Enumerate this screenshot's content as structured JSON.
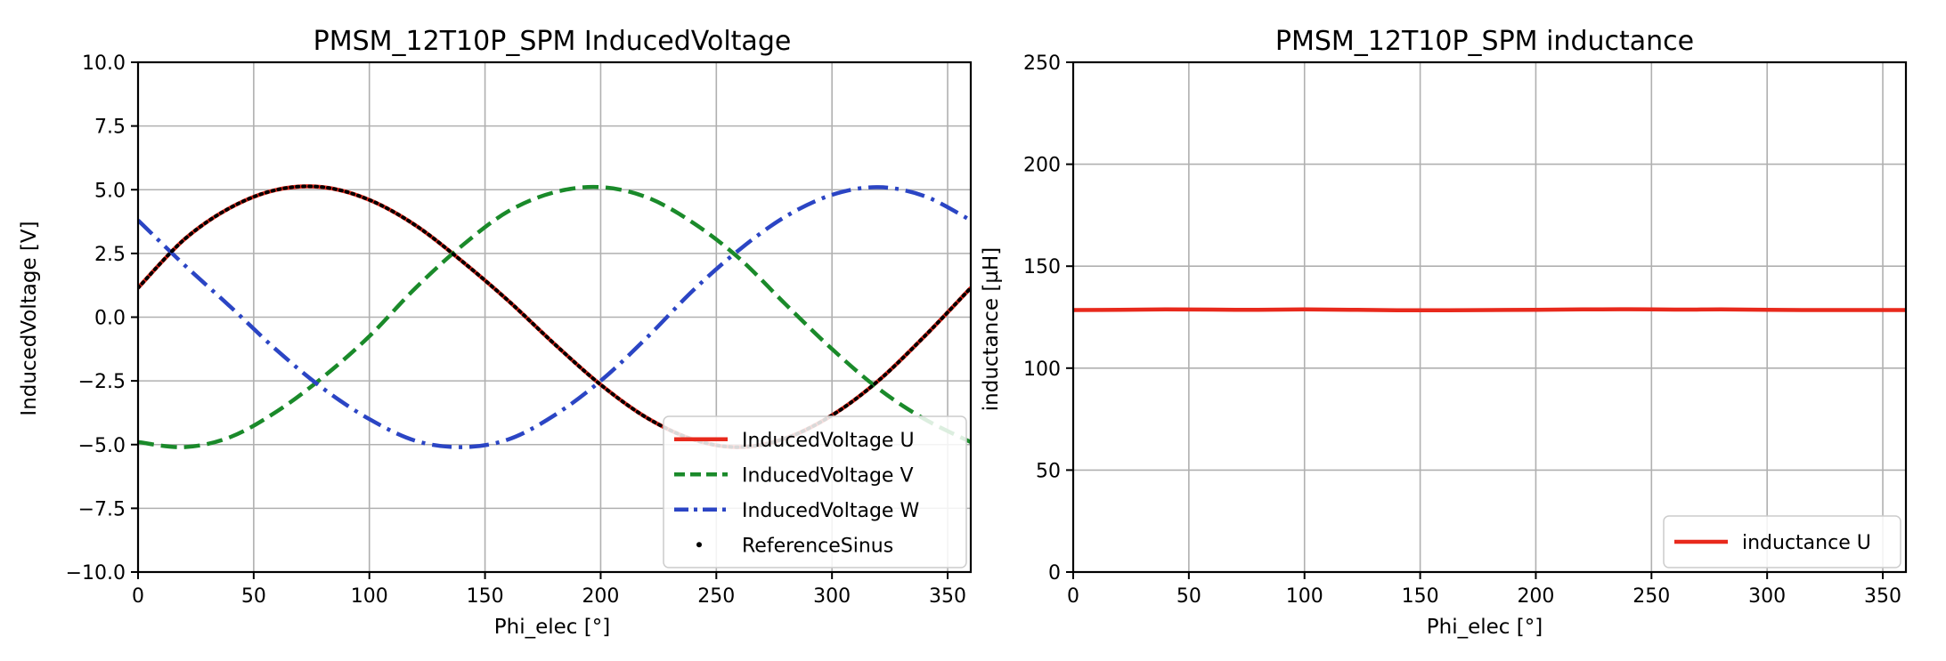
{
  "chart_data": [
    {
      "type": "line",
      "title": "PMSM_12T10P_SPM InducedVoltage",
      "xlabel": "Phi_elec [°]",
      "ylabel": "InducedVoltage [V]",
      "xlim": [
        0,
        360
      ],
      "ylim": [
        -10,
        10
      ],
      "xticks": [
        0,
        50,
        100,
        150,
        200,
        250,
        300,
        350
      ],
      "xtick_labels": [
        "0",
        "50",
        "100",
        "150",
        "200",
        "250",
        "300",
        "350"
      ],
      "yticks": [
        -10,
        -7.5,
        -5,
        -2.5,
        0,
        2.5,
        5,
        7.5,
        10
      ],
      "ytick_labels": [
        "−10.0",
        "−7.5",
        "−5.0",
        "−2.5",
        "0.0",
        "2.5",
        "5.0",
        "7.5",
        "10.0"
      ],
      "grid": true,
      "legend_position": "lower right",
      "x": [
        0,
        20,
        40,
        60,
        80,
        100,
        120,
        140,
        160,
        180,
        200,
        220,
        240,
        260,
        280,
        300,
        320,
        340,
        360
      ],
      "series": [
        {
          "name": "InducedVoltage U",
          "style": "solid",
          "color": "#e8291c",
          "values": [
            1.15,
            3.05,
            4.3,
            5.0,
            5.1,
            4.6,
            3.6,
            2.2,
            0.65,
            -1.05,
            -2.65,
            -3.95,
            -4.8,
            -5.1,
            -4.75,
            -3.85,
            -2.5,
            -0.75,
            1.15
          ]
        },
        {
          "name": "InducedVoltage V",
          "style": "dashed",
          "color": "#1a8a2a",
          "values": [
            -4.9,
            -5.1,
            -4.7,
            -3.7,
            -2.35,
            -0.75,
            1.15,
            2.8,
            4.15,
            4.9,
            5.1,
            4.7,
            3.7,
            2.3,
            0.5,
            -1.25,
            -2.8,
            -4.0,
            -4.9
          ]
        },
        {
          "name": "InducedVoltage W",
          "style": "dashdot",
          "color": "#2b45c4",
          "values": [
            3.8,
            2.05,
            0.4,
            -1.3,
            -2.8,
            -4.0,
            -4.85,
            -5.1,
            -4.8,
            -3.85,
            -2.5,
            -0.8,
            1.05,
            2.65,
            3.95,
            4.8,
            5.1,
            4.75,
            3.8
          ]
        },
        {
          "name": "ReferenceSinus",
          "style": "dotted",
          "color": "#000000",
          "values": [
            1.15,
            3.05,
            4.3,
            5.0,
            5.1,
            4.6,
            3.6,
            2.2,
            0.65,
            -1.05,
            -2.65,
            -3.95,
            -4.8,
            -5.1,
            -4.75,
            -3.85,
            -2.5,
            -0.75,
            1.15
          ]
        }
      ]
    },
    {
      "type": "line",
      "title": "PMSM_12T10P_SPM inductance",
      "xlabel": "Phi_elec [°]",
      "ylabel": "inductance [µH]",
      "xlim": [
        0,
        360
      ],
      "ylim": [
        0,
        250
      ],
      "xticks": [
        0,
        50,
        100,
        150,
        200,
        250,
        300,
        350
      ],
      "xtick_labels": [
        "0",
        "50",
        "100",
        "150",
        "200",
        "250",
        "300",
        "350"
      ],
      "yticks": [
        0,
        50,
        100,
        150,
        200,
        250
      ],
      "ytick_labels": [
        "0",
        "50",
        "100",
        "150",
        "200",
        "250"
      ],
      "grid": true,
      "legend_position": "lower right",
      "x": [
        0,
        20,
        40,
        60,
        80,
        100,
        120,
        140,
        160,
        180,
        200,
        220,
        240,
        260,
        280,
        300,
        320,
        340,
        360
      ],
      "series": [
        {
          "name": "inductance U",
          "style": "solid",
          "color": "#e8291c",
          "values": [
            128.5,
            128.6,
            128.8,
            128.7,
            128.6,
            128.8,
            128.6,
            128.4,
            128.4,
            128.5,
            128.6,
            128.8,
            128.9,
            128.7,
            128.8,
            128.6,
            128.5,
            128.5,
            128.5
          ]
        }
      ]
    }
  ]
}
